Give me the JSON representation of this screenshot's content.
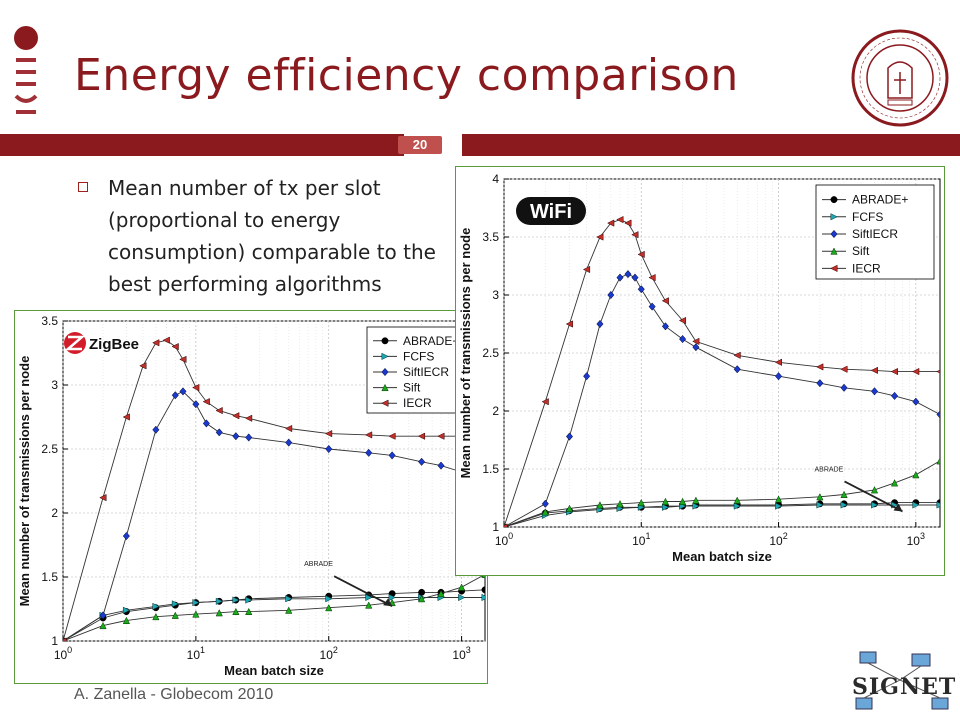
{
  "slide": {
    "title": "Energy efficiency comparison",
    "number": "20",
    "bullet": "Mean number of tx per slot (proportional to energy consumption) comparable to the best performing algorithms",
    "footer": "A. Zanella - Globecom 2010",
    "signet_label": "SIGNET",
    "seal_label": "UNIVERSITAS STUDII PADUANI"
  },
  "colors": {
    "brand": "#8b1a1f",
    "slide_number_bg": "#c0504d",
    "frame_border": "#5a9a3a"
  },
  "chart_data": [
    {
      "type": "line",
      "logo": "ZigBee",
      "x_scale": "log",
      "xlabel": "Mean batch size",
      "ylabel": "Mean number of transmissions per node",
      "xlim": [
        1,
        1500
      ],
      "ylim": [
        1,
        3.5
      ],
      "x_ticks": [
        "10^0",
        "10^1",
        "10^2",
        "10^3"
      ],
      "y_ticks": [
        "1",
        "1.5",
        "2",
        "2.5",
        "3",
        "3.5"
      ],
      "legend_position": "top-right",
      "grid": true,
      "annotation": {
        "text": "ABRADE",
        "points_to_x": 300,
        "points_to_y": 1.35
      },
      "series": [
        {
          "name": "ABRADE+",
          "marker": "circle",
          "color": "#000000",
          "x": [
            1,
            2,
            3,
            5,
            7,
            10,
            15,
            20,
            25,
            50,
            100,
            200,
            300,
            500,
            700,
            1000,
            1500
          ],
          "y": [
            1,
            1.18,
            1.23,
            1.26,
            1.28,
            1.3,
            1.31,
            1.32,
            1.33,
            1.34,
            1.35,
            1.36,
            1.37,
            1.38,
            1.38,
            1.39,
            1.4
          ]
        },
        {
          "name": "FCFS",
          "marker": "triangle-right",
          "color": "#1fa6b3",
          "x": [
            1,
            2,
            3,
            5,
            7,
            10,
            15,
            20,
            25,
            50,
            100,
            200,
            300,
            500,
            700,
            1000,
            1500
          ],
          "y": [
            1,
            1.2,
            1.24,
            1.27,
            1.29,
            1.3,
            1.31,
            1.32,
            1.32,
            1.33,
            1.33,
            1.34,
            1.34,
            1.34,
            1.34,
            1.34,
            1.34
          ]
        },
        {
          "name": "SiftIECR",
          "marker": "diamond",
          "color": "#1a3acc",
          "x": [
            1,
            2,
            3,
            5,
            7,
            8,
            10,
            12,
            15,
            20,
            25,
            50,
            100,
            200,
            300,
            500,
            700,
            1000,
            1500
          ],
          "y": [
            1,
            1.2,
            1.82,
            2.65,
            2.92,
            2.95,
            2.85,
            2.7,
            2.63,
            2.6,
            2.59,
            2.55,
            2.5,
            2.47,
            2.45,
            2.4,
            2.37,
            2.32,
            2.25
          ]
        },
        {
          "name": "Sift",
          "marker": "triangle-up",
          "color": "#1aaa1a",
          "x": [
            1,
            2,
            3,
            5,
            7,
            10,
            15,
            20,
            25,
            50,
            100,
            200,
            300,
            500,
            700,
            1000,
            1500
          ],
          "y": [
            1,
            1.12,
            1.16,
            1.19,
            1.2,
            1.21,
            1.22,
            1.23,
            1.23,
            1.24,
            1.26,
            1.28,
            1.3,
            1.33,
            1.37,
            1.42,
            1.52
          ]
        },
        {
          "name": "IECR",
          "marker": "triangle-left",
          "color": "#c0302a",
          "x": [
            1,
            2,
            3,
            4,
            5,
            6,
            7,
            8,
            10,
            12,
            15,
            20,
            25,
            50,
            100,
            200,
            300,
            500,
            700,
            1000,
            1500
          ],
          "y": [
            1,
            2.12,
            2.75,
            3.15,
            3.33,
            3.35,
            3.3,
            3.2,
            2.98,
            2.87,
            2.8,
            2.76,
            2.74,
            2.66,
            2.62,
            2.61,
            2.6,
            2.6,
            2.6,
            2.6,
            2.6
          ]
        }
      ]
    },
    {
      "type": "line",
      "logo": "WiFi",
      "x_scale": "log",
      "xlabel": "Mean batch size",
      "ylabel": "Mean number of transmissions per node",
      "xlim": [
        1,
        1500
      ],
      "ylim": [
        1,
        4
      ],
      "x_ticks": [
        "10^0",
        "10^1",
        "10^2",
        "10^3"
      ],
      "y_ticks": [
        "1",
        "1.5",
        "2",
        "2.5",
        "3",
        "3.5",
        "4"
      ],
      "legend_position": "top-right",
      "grid": true,
      "annotation": {
        "text": "ABRADE",
        "points_to_x": 800,
        "points_to_y": 1.22
      },
      "series": [
        {
          "name": "ABRADE+",
          "marker": "circle",
          "color": "#000000",
          "x": [
            1,
            2,
            3,
            5,
            7,
            10,
            15,
            20,
            25,
            50,
            100,
            200,
            300,
            500,
            700,
            1000,
            1500
          ],
          "y": [
            1,
            1.12,
            1.14,
            1.16,
            1.17,
            1.17,
            1.18,
            1.18,
            1.19,
            1.19,
            1.19,
            1.2,
            1.2,
            1.2,
            1.21,
            1.21,
            1.21
          ]
        },
        {
          "name": "FCFS",
          "marker": "triangle-right",
          "color": "#1fa6b3",
          "x": [
            1,
            2,
            3,
            5,
            7,
            10,
            15,
            20,
            25,
            50,
            100,
            200,
            300,
            500,
            700,
            1000,
            1500
          ],
          "y": [
            1,
            1.1,
            1.13,
            1.15,
            1.16,
            1.17,
            1.17,
            1.18,
            1.18,
            1.18,
            1.18,
            1.19,
            1.19,
            1.19,
            1.19,
            1.19,
            1.19
          ]
        },
        {
          "name": "SiftIECR",
          "marker": "diamond",
          "color": "#1a3acc",
          "x": [
            1,
            2,
            3,
            4,
            5,
            6,
            7,
            8,
            9,
            10,
            12,
            15,
            20,
            25,
            50,
            100,
            200,
            300,
            500,
            700,
            1000,
            1500
          ],
          "y": [
            1,
            1.2,
            1.78,
            2.3,
            2.75,
            3.0,
            3.15,
            3.18,
            3.15,
            3.05,
            2.9,
            2.73,
            2.62,
            2.55,
            2.36,
            2.3,
            2.24,
            2.2,
            2.17,
            2.13,
            2.08,
            1.97
          ]
        },
        {
          "name": "Sift",
          "marker": "triangle-up",
          "color": "#1aaa1a",
          "x": [
            1,
            2,
            3,
            5,
            7,
            10,
            15,
            20,
            25,
            50,
            100,
            200,
            300,
            500,
            700,
            1000,
            1500
          ],
          "y": [
            1,
            1.13,
            1.16,
            1.19,
            1.2,
            1.21,
            1.22,
            1.22,
            1.23,
            1.23,
            1.24,
            1.26,
            1.28,
            1.32,
            1.38,
            1.45,
            1.57
          ]
        },
        {
          "name": "IECR",
          "marker": "triangle-left",
          "color": "#c0302a",
          "x": [
            1,
            2,
            3,
            4,
            5,
            6,
            7,
            8,
            9,
            10,
            12,
            15,
            20,
            25,
            50,
            100,
            200,
            300,
            500,
            700,
            1000,
            1500
          ],
          "y": [
            1,
            2.08,
            2.75,
            3.22,
            3.5,
            3.62,
            3.65,
            3.62,
            3.52,
            3.35,
            3.15,
            2.95,
            2.78,
            2.6,
            2.48,
            2.42,
            2.38,
            2.36,
            2.35,
            2.34,
            2.34,
            2.34
          ]
        }
      ]
    }
  ]
}
